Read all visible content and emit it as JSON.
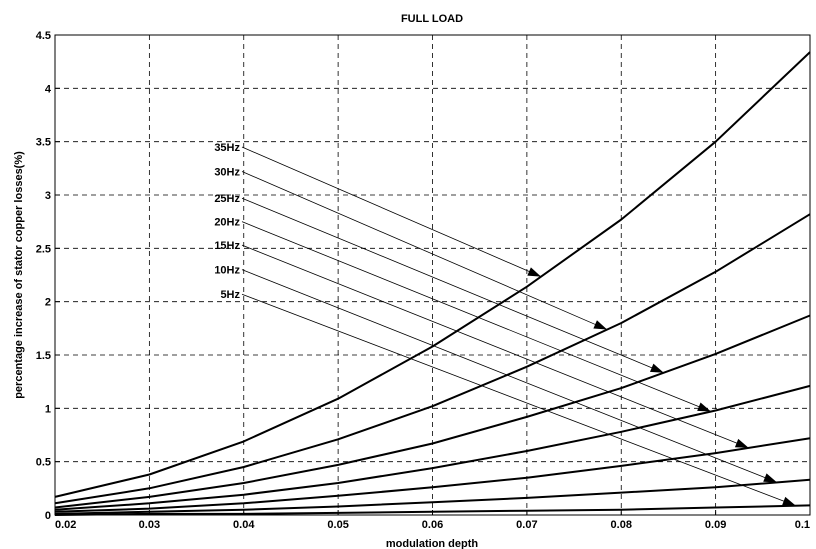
{
  "chart_data": {
    "type": "line",
    "title": "FULL LOAD",
    "xlabel": "modulation depth",
    "ylabel": "percentage increase of stator copper losses(%)",
    "xlim": [
      0.02,
      0.1
    ],
    "ylim": [
      0,
      4.5
    ],
    "grid": true,
    "x": [
      0.02,
      0.03,
      0.04,
      0.05,
      0.06,
      0.07,
      0.08,
      0.09,
      0.1
    ],
    "xticks": [
      "0.02",
      "0.03",
      "0.04",
      "0.05",
      "0.06",
      "0.07",
      "0.08",
      "0.09",
      "0.1"
    ],
    "yticks": [
      "0",
      "0.5",
      "1",
      "1.5",
      "2",
      "2.5",
      "3",
      "3.5",
      "4",
      "4.5"
    ],
    "series": [
      {
        "name": "35Hz",
        "values": [
          0.17,
          0.38,
          0.69,
          1.09,
          1.58,
          2.14,
          2.77,
          3.5,
          4.34
        ]
      },
      {
        "name": "30Hz",
        "values": [
          0.11,
          0.25,
          0.45,
          0.71,
          1.02,
          1.39,
          1.8,
          2.28,
          2.82
        ]
      },
      {
        "name": "25Hz",
        "values": [
          0.07,
          0.17,
          0.3,
          0.47,
          0.67,
          0.92,
          1.19,
          1.51,
          1.87
        ]
      },
      {
        "name": "20Hz",
        "values": [
          0.05,
          0.11,
          0.19,
          0.3,
          0.44,
          0.6,
          0.78,
          0.98,
          1.21
        ]
      },
      {
        "name": "15Hz",
        "values": [
          0.03,
          0.06,
          0.11,
          0.18,
          0.26,
          0.35,
          0.46,
          0.58,
          0.72
        ]
      },
      {
        "name": "10Hz",
        "values": [
          0.01,
          0.03,
          0.05,
          0.08,
          0.12,
          0.16,
          0.21,
          0.26,
          0.33
        ]
      },
      {
        "name": "5Hz",
        "values": [
          0.0,
          0.01,
          0.01,
          0.02,
          0.03,
          0.04,
          0.05,
          0.07,
          0.09
        ]
      }
    ],
    "annotations": [
      {
        "text": "35Hz",
        "series": "35Hz",
        "label_y": 3.45,
        "arrow_x": 0.0715
      },
      {
        "text": "30Hz",
        "series": "30Hz",
        "label_y": 3.22,
        "arrow_x": 0.0785
      },
      {
        "text": "25Hz",
        "series": "25Hz",
        "label_y": 2.97,
        "arrow_x": 0.0845
      },
      {
        "text": "20Hz",
        "series": "20Hz",
        "label_y": 2.75,
        "arrow_x": 0.0895
      },
      {
        "text": "15Hz",
        "series": "15Hz",
        "label_y": 2.53,
        "arrow_x": 0.0935
      },
      {
        "text": "10Hz",
        "series": "10Hz",
        "label_y": 2.3,
        "arrow_x": 0.0965
      },
      {
        "text": "5Hz",
        "series": "5Hz",
        "label_y": 2.07,
        "arrow_x": 0.0985
      }
    ]
  }
}
